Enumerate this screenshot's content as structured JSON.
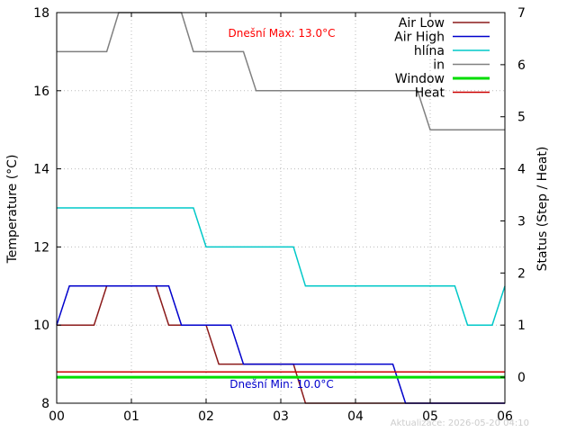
{
  "chart_data": {
    "type": "line",
    "ylabel": "Temperature (°C)",
    "y2label": "Status (Step / Heat)",
    "x_ticks": [
      "00",
      "01",
      "02",
      "03",
      "04",
      "05",
      "06"
    ],
    "xlim": [
      0,
      6
    ],
    "ylim": [
      8,
      18
    ],
    "y_ticks": [
      8,
      10,
      12,
      14,
      16,
      18
    ],
    "y2lim": [
      -0.5,
      7
    ],
    "y2_ticks": [
      0,
      1,
      2,
      3,
      4,
      5,
      6,
      7
    ],
    "grid": true,
    "legend_position": "top-right",
    "series": [
      {
        "name": "Air Low",
        "color": "#8b1a1a",
        "width": 1.5,
        "axis": "y",
        "x": [
          0,
          0.5,
          0.67,
          1.33,
          1.5,
          2.0,
          2.17,
          3.17,
          3.33,
          4.5,
          4.67,
          6.0
        ],
        "y": [
          10,
          10,
          11,
          11,
          10,
          10,
          9,
          9,
          8,
          8,
          8,
          8
        ]
      },
      {
        "name": "Air High",
        "color": "#0000cc",
        "width": 1.5,
        "axis": "y",
        "x": [
          0,
          0.17,
          1.5,
          1.67,
          2.33,
          2.5,
          4.5,
          4.67,
          6.0
        ],
        "y": [
          10,
          11,
          11,
          10,
          10,
          9,
          9,
          8,
          8
        ]
      },
      {
        "name": "hlína",
        "color": "#00c8c8",
        "width": 1.5,
        "axis": "y",
        "x": [
          0,
          1.83,
          2.0,
          3.17,
          3.33,
          5.33,
          5.5,
          5.83,
          6.0
        ],
        "y": [
          13,
          13,
          12,
          12,
          11,
          11,
          10,
          10,
          11
        ]
      },
      {
        "name": "in",
        "color": "#808080",
        "width": 1.5,
        "axis": "y",
        "x": [
          0,
          0.67,
          0.83,
          1.67,
          1.83,
          2.5,
          2.67,
          4.83,
          5.0,
          6.0
        ],
        "y": [
          17,
          17,
          18,
          18,
          17,
          17,
          16,
          16,
          15,
          15
        ]
      },
      {
        "name": "Window",
        "color": "#00dd00",
        "width": 3,
        "axis": "y2",
        "x": [
          0,
          6
        ],
        "y": [
          0,
          0
        ]
      },
      {
        "name": "Heat",
        "color": "#cc0000",
        "width": 1.5,
        "axis": "y2",
        "x": [
          0,
          6
        ],
        "y": [
          0.1,
          0.1
        ]
      }
    ],
    "annotations": {
      "max": {
        "text": "Dnešní Max: 13.0°C",
        "color": "#ff0000"
      },
      "min": {
        "text": "Dnešní Min: 10.0°C",
        "color": "#0000cc"
      },
      "updated": "Aktualizace: 2026-05-20 04:10"
    }
  }
}
